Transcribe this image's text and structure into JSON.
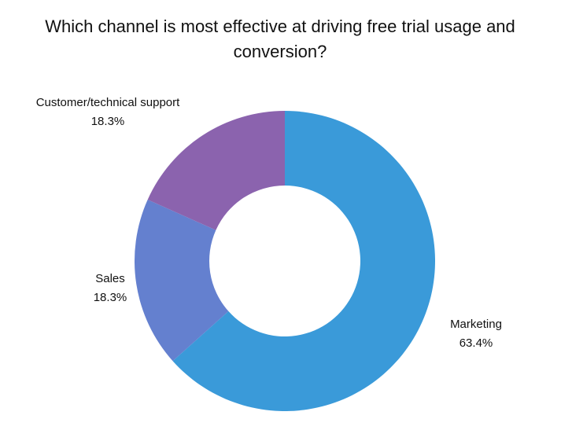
{
  "chart_data": {
    "type": "donut",
    "title": "Which channel is most effective at driving free trial usage and conversion?",
    "categories": [
      "Marketing",
      "Sales",
      "Customer/technical support"
    ],
    "values": [
      63.4,
      18.3,
      18.3
    ],
    "value_labels": [
      "63.4%",
      "18.3%",
      "18.3%"
    ],
    "colors": [
      "#3a9ad9",
      "#6480cf",
      "#8b63ae"
    ]
  }
}
